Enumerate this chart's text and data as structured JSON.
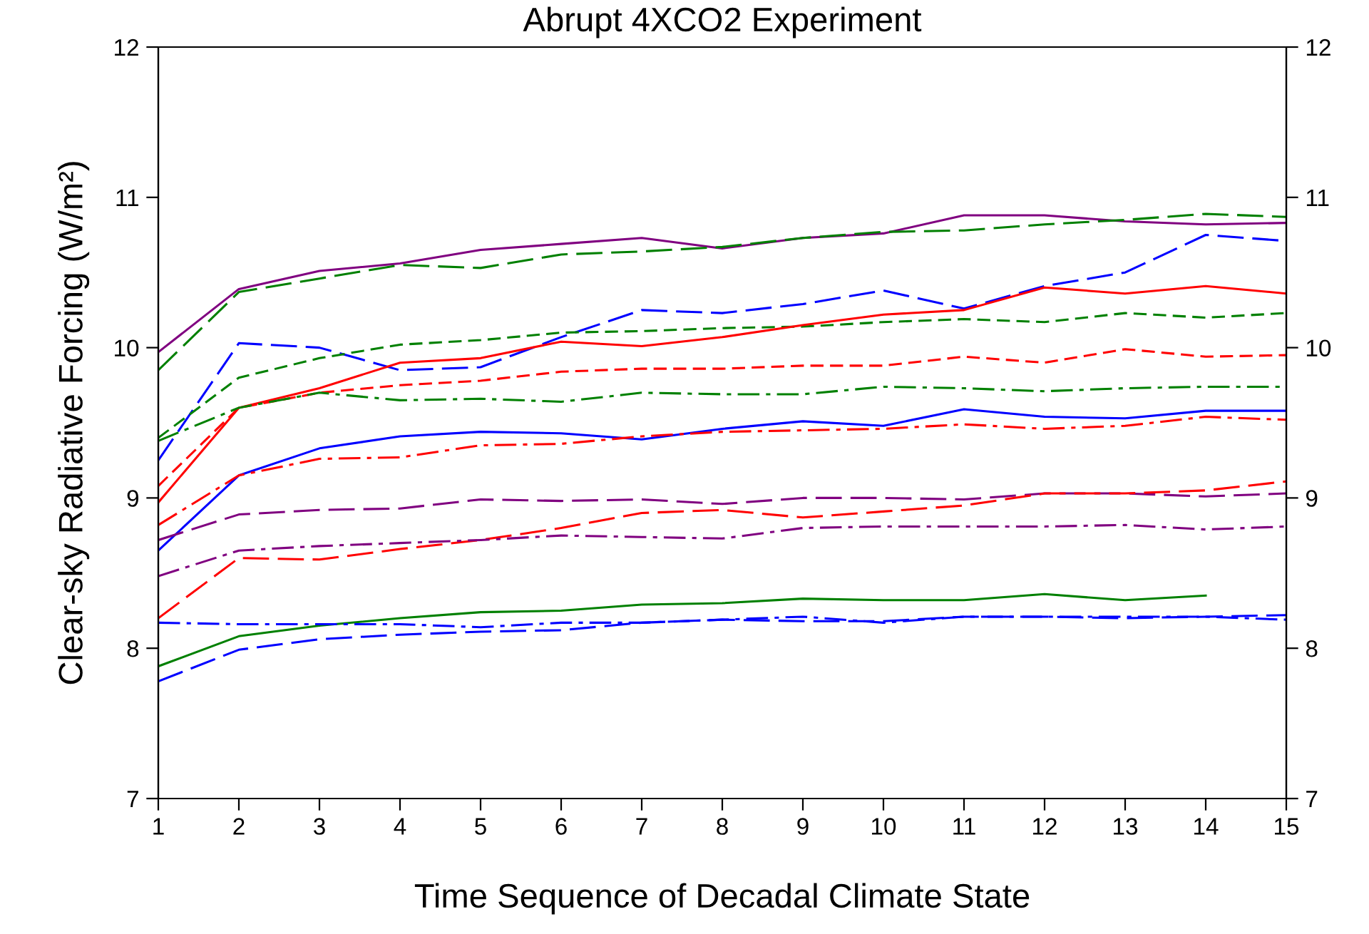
{
  "chart_data": {
    "type": "line",
    "title": "Abrupt 4XCO2 Experiment",
    "xlabel": "Time Sequence of Decadal Climate State",
    "ylabel": "Clear-sky Radiative Forcing (W/m²)",
    "x": [
      1,
      2,
      3,
      4,
      5,
      6,
      7,
      8,
      9,
      10,
      11,
      12,
      13,
      14,
      15
    ],
    "xlim": [
      1,
      15
    ],
    "xticks": [
      1,
      2,
      3,
      4,
      5,
      6,
      7,
      8,
      9,
      10,
      11,
      12,
      13,
      14,
      15
    ],
    "ylim": [
      7,
      12
    ],
    "yticks": [
      7,
      8,
      9,
      10,
      11,
      12
    ],
    "y2lim": [
      7,
      12
    ],
    "y2ticks": [
      7,
      8,
      9,
      10,
      11,
      12
    ],
    "grid": false,
    "legend": false,
    "marker": "none",
    "series": [
      {
        "color": "#800080",
        "line_style": "solid",
        "values": [
          9.97,
          10.39,
          10.51,
          10.56,
          10.65,
          10.69,
          10.73,
          10.66,
          10.73,
          10.76,
          10.88,
          10.88,
          10.84,
          10.82,
          10.83
        ]
      },
      {
        "color": "#008000",
        "line_style": "longdash",
        "values": [
          9.85,
          10.37,
          10.46,
          10.55,
          10.53,
          10.62,
          10.64,
          10.67,
          10.73,
          10.77,
          10.78,
          10.82,
          10.85,
          10.89,
          10.87
        ]
      },
      {
        "color": "#0000ff",
        "line_style": "longdash",
        "values": [
          9.25,
          10.03,
          10.0,
          9.85,
          9.87,
          10.07,
          10.25,
          10.23,
          10.29,
          10.38,
          10.26,
          10.41,
          10.5,
          10.75,
          10.71
        ]
      },
      {
        "color": "#008000",
        "line_style": "dashed",
        "values": [
          9.4,
          9.8,
          9.93,
          10.02,
          10.05,
          10.1,
          10.11,
          10.13,
          10.14,
          10.17,
          10.19,
          10.17,
          10.23,
          10.2,
          10.23
        ]
      },
      {
        "color": "#ff0000",
        "line_style": "solid",
        "values": [
          8.97,
          9.6,
          9.73,
          9.9,
          9.93,
          10.04,
          10.01,
          10.07,
          10.15,
          10.22,
          10.25,
          10.4,
          10.36,
          10.41,
          10.36
        ]
      },
      {
        "color": "#ff0000",
        "line_style": "dashed",
        "values": [
          9.08,
          9.6,
          9.7,
          9.75,
          9.78,
          9.84,
          9.86,
          9.86,
          9.88,
          9.88,
          9.94,
          9.9,
          9.99,
          9.94,
          9.95
        ]
      },
      {
        "color": "#008000",
        "line_style": "dashdot",
        "values": [
          9.38,
          9.6,
          9.7,
          9.65,
          9.66,
          9.64,
          9.7,
          9.69,
          9.69,
          9.74,
          9.73,
          9.71,
          9.73,
          9.74,
          9.74
        ]
      },
      {
        "color": "#0000ff",
        "line_style": "solid",
        "values": [
          8.65,
          9.15,
          9.33,
          9.41,
          9.44,
          9.43,
          9.39,
          9.46,
          9.51,
          9.48,
          9.59,
          9.54,
          9.53,
          9.58,
          9.58
        ]
      },
      {
        "color": "#ff0000",
        "line_style": "dashdot",
        "values": [
          8.82,
          9.15,
          9.26,
          9.27,
          9.35,
          9.36,
          9.41,
          9.44,
          9.45,
          9.46,
          9.49,
          9.46,
          9.48,
          9.54,
          9.52
        ]
      },
      {
        "color": "#800080",
        "line_style": "longdash",
        "values": [
          8.72,
          8.89,
          8.92,
          8.93,
          8.99,
          8.98,
          8.99,
          8.96,
          9.0,
          9.0,
          8.99,
          9.03,
          9.03,
          9.01,
          9.03
        ]
      },
      {
        "color": "#ff0000",
        "line_style": "longdash",
        "values": [
          8.2,
          8.6,
          8.59,
          8.66,
          8.72,
          8.8,
          8.9,
          8.92,
          8.87,
          8.91,
          8.95,
          9.03,
          9.03,
          9.05,
          9.11
        ]
      },
      {
        "color": "#800080",
        "line_style": "dashdot",
        "values": [
          8.48,
          8.65,
          8.68,
          8.7,
          8.72,
          8.75,
          8.74,
          8.73,
          8.8,
          8.81,
          8.81,
          8.81,
          8.82,
          8.79,
          8.81
        ]
      },
      {
        "color": "#008000",
        "line_style": "solid",
        "values": [
          7.88,
          8.08,
          8.15,
          8.2,
          8.24,
          8.25,
          8.29,
          8.3,
          8.33,
          8.32,
          8.32,
          8.36,
          8.32,
          8.35,
          null
        ]
      },
      {
        "color": "#0000ff",
        "line_style": "dashdot",
        "values": [
          8.17,
          8.16,
          8.16,
          8.16,
          8.14,
          8.17,
          8.17,
          8.19,
          8.21,
          8.17,
          8.21,
          8.21,
          8.21,
          8.21,
          8.19
        ]
      },
      {
        "color": "#0000ff",
        "line_style": "longdash",
        "values": [
          7.78,
          7.99,
          8.06,
          8.09,
          8.11,
          8.12,
          8.17,
          8.19,
          8.18,
          8.18,
          8.21,
          8.21,
          8.2,
          8.21,
          8.22
        ]
      }
    ]
  }
}
